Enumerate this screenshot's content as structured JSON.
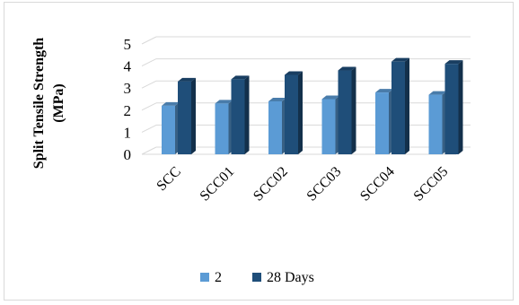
{
  "chart_data": {
    "type": "bar",
    "ylabel_lines": [
      "Split Tensile Strength",
      "(MPa)"
    ],
    "categories": [
      "SCC",
      "SCC01",
      "SCC02",
      "SCC03",
      "SCC04",
      "SCC05"
    ],
    "series": [
      {
        "name": "2",
        "values": [
          2.2,
          2.3,
          2.4,
          2.5,
          2.8,
          2.7
        ],
        "color": "#5b9bd5"
      },
      {
        "name": "28 Days",
        "values": [
          3.3,
          3.4,
          3.6,
          3.8,
          4.2,
          4.1
        ],
        "color": "#1f4e79"
      }
    ],
    "yticks": [
      "0",
      "1",
      "2",
      "3",
      "4",
      "5"
    ],
    "ylim": [
      0,
      5
    ],
    "grid": true,
    "legend_position": "bottom"
  }
}
